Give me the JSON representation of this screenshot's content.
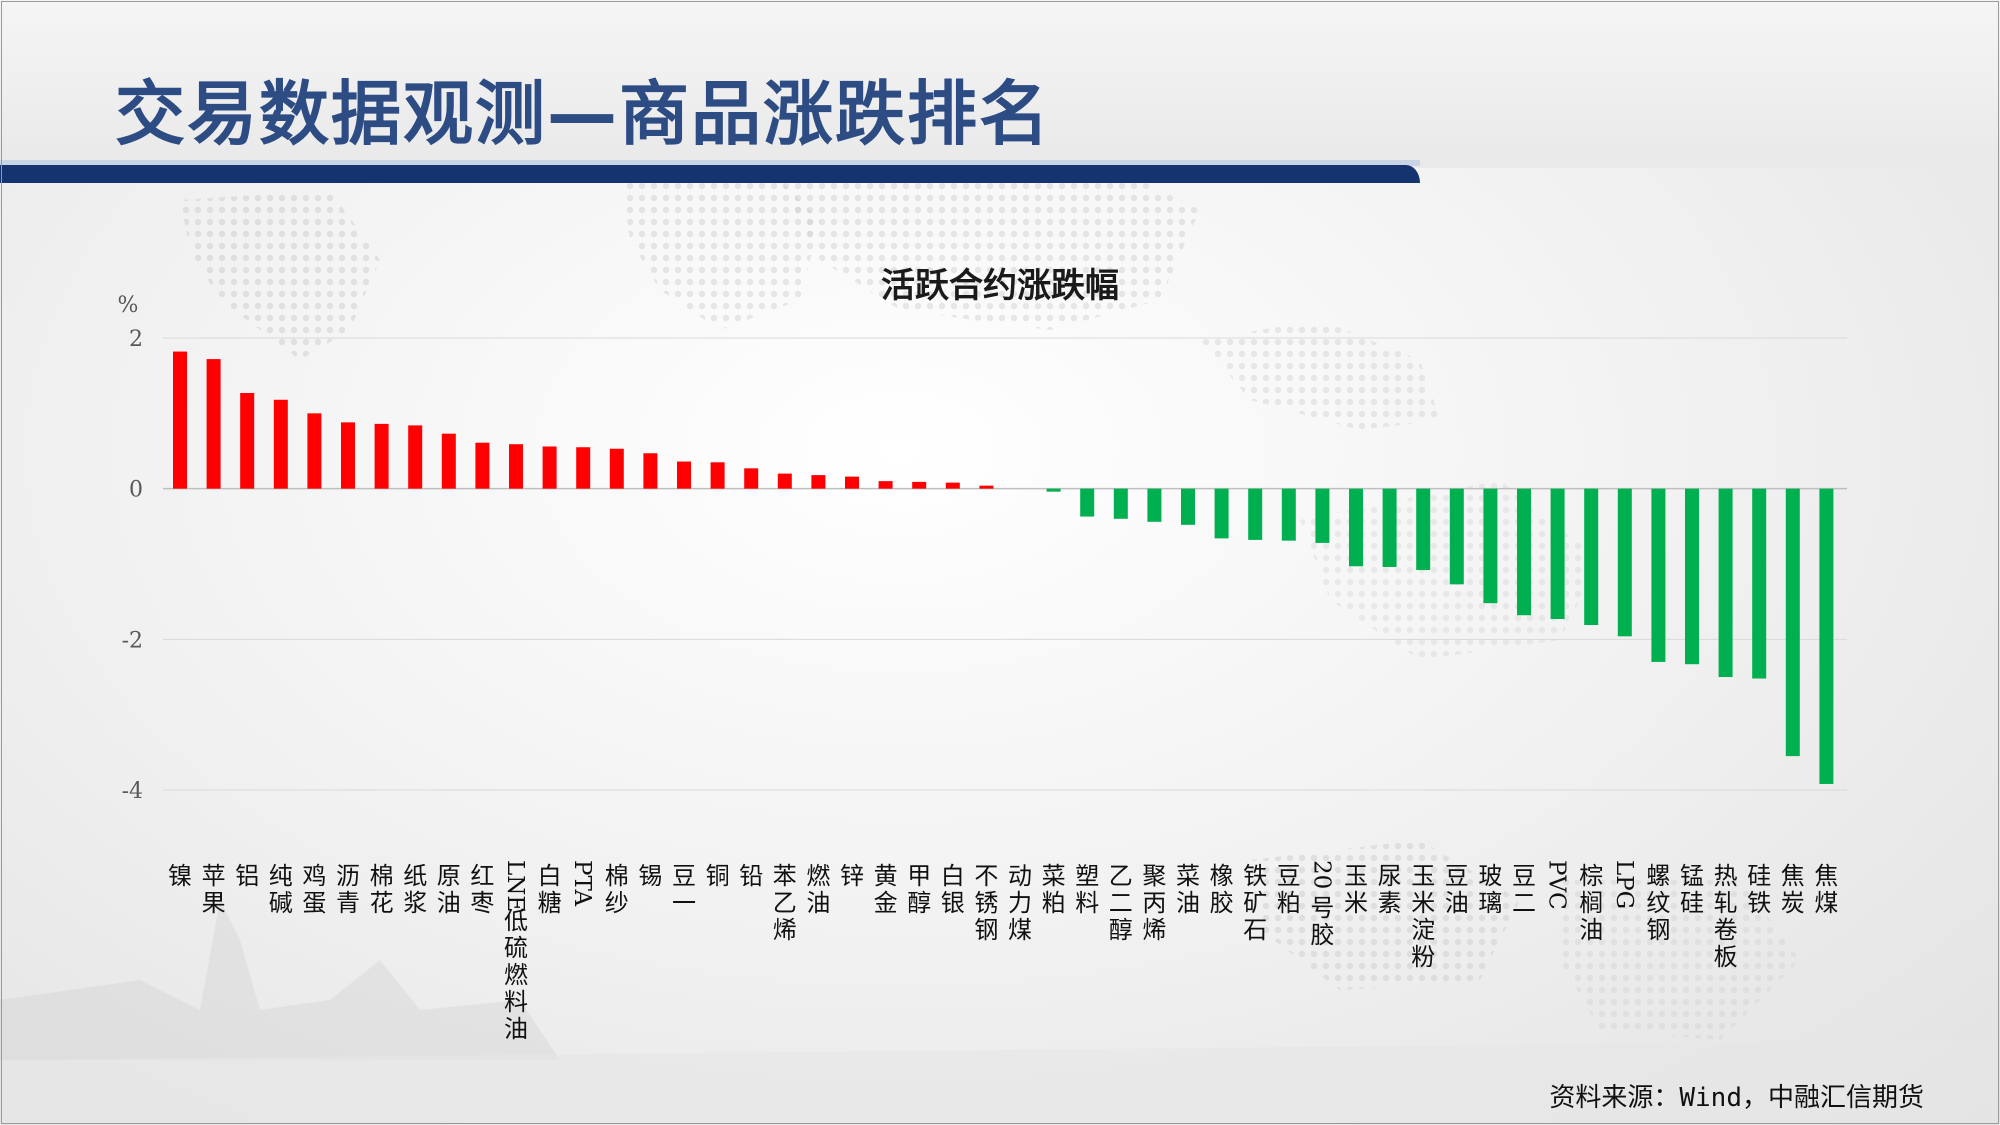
{
  "header": {
    "title": "交易数据观测—商品涨跌排名"
  },
  "chart_title": "活跃合约涨跌幅",
  "source_note": "资料来源：Wind，中融汇信期货",
  "colors": {
    "positive": "#ff0000",
    "negative": "#00b050",
    "header_band": "#15336e",
    "title_text": "#2e4c84",
    "gridline": "#d9d9d9",
    "axis_text": "#595959"
  },
  "chart_data": {
    "type": "bar",
    "title": "活跃合约涨跌幅",
    "ylabel": "%",
    "ylim": [
      -4,
      2
    ],
    "yticks": [
      {
        "value": 2,
        "label": "2"
      },
      {
        "value": 0,
        "label": "0"
      },
      {
        "value": -2,
        "label": "-2"
      },
      {
        "value": -4,
        "label": "-4"
      }
    ],
    "grid": true,
    "legend": "none",
    "categories": [
      "镍",
      "苹果",
      "铝",
      "纯碱",
      "鸡蛋",
      "沥青",
      "棉花",
      "纸浆",
      "原油",
      "红枣",
      "LNE低硫燃料油",
      "白糖",
      "PTA",
      "棉纱",
      "锡",
      "豆一",
      "铜",
      "铅",
      "苯乙烯",
      "燃油",
      "锌",
      "黄金",
      "甲醇",
      "白银",
      "不锈钢",
      "动力煤",
      "菜粕",
      "塑料",
      "乙二醇",
      "聚丙烯",
      "菜油",
      "橡胶",
      "铁矿石",
      "豆粕",
      "20号胶",
      "玉米",
      "尿素",
      "玉米淀粉",
      "豆油",
      "玻璃",
      "豆二",
      "PVC",
      "棕榈油",
      "LPG",
      "螺纹钢",
      "锰硅",
      "热轧卷板",
      "硅铁",
      "焦炭",
      "焦煤"
    ],
    "values": [
      1.82,
      1.72,
      1.27,
      1.18,
      1.0,
      0.88,
      0.86,
      0.84,
      0.73,
      0.61,
      0.59,
      0.56,
      0.55,
      0.53,
      0.47,
      0.36,
      0.35,
      0.27,
      0.2,
      0.18,
      0.16,
      0.1,
      0.09,
      0.08,
      0.04,
      0.0,
      -0.04,
      -0.37,
      -0.4,
      -0.44,
      -0.48,
      -0.66,
      -0.68,
      -0.69,
      -0.72,
      -1.03,
      -1.04,
      -1.08,
      -1.27,
      -1.52,
      -1.68,
      -1.73,
      -1.81,
      -1.96,
      -2.3,
      -2.33,
      -2.5,
      -2.52,
      -3.55,
      -3.92
    ]
  }
}
